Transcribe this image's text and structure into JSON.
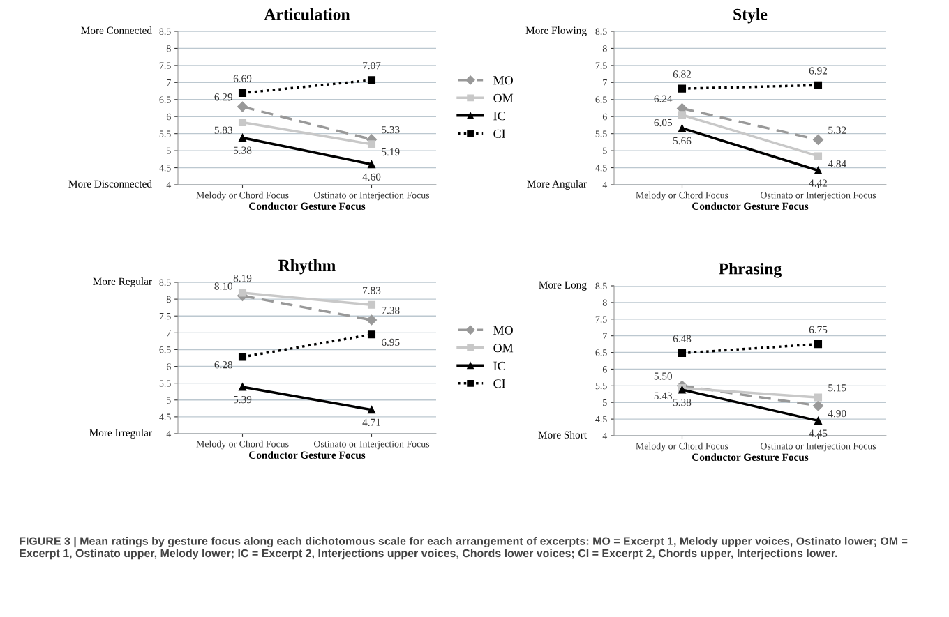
{
  "chart_data": [
    {
      "type": "line",
      "title": "Articulation",
      "xlabel": "Conductor Gesture Focus",
      "categories": [
        "Melody or Chord Focus",
        "Ostinato or Interjection Focus"
      ],
      "series": [
        {
          "name": "MO",
          "color": "#999999",
          "values": [
            6.29,
            5.33
          ],
          "marker": "diamond",
          "line_style": "dashed"
        },
        {
          "name": "OM",
          "color": "#c8c8c8",
          "values": [
            5.83,
            5.19
          ],
          "marker": "square",
          "line_style": "solid"
        },
        {
          "name": "IC",
          "color": "#000000",
          "values": [
            5.38,
            4.6
          ],
          "value_labels": [
            "5.38",
            "4.60"
          ],
          "marker": "triangle",
          "line_style": "solid"
        },
        {
          "name": "CI",
          "color": "#000000",
          "values": [
            6.69,
            7.07
          ],
          "marker": "square",
          "line_style": "dotted"
        }
      ],
      "ylim": [
        4,
        8.5
      ],
      "yticks": [
        4,
        4.5,
        5,
        5.5,
        6,
        6.5,
        7,
        7.5,
        8,
        8.5
      ],
      "grid": "y",
      "legend": "right",
      "data_labels": true,
      "annotations": [
        "More Connected",
        "More Disconnected",
        "FIGURE 3 | Mean ratings by gesture focus along each dichotomous scale for each arrangement of excerpts: MO = Excerpt 1, Melody upper voices, Ostinato lower; OM = Excerpt 1, Ostinato upper, Melody lower; IC = Excerpt 2, Interjections upper voices, Chords lower voices; CI = Excerpt 2, Chords upper, Interjections lower."
      ]
    },
    {
      "type": "line",
      "title": "Style",
      "xlabel": "Conductor Gesture Focus",
      "categories": [
        "Melody or Chord Focus",
        "Ostinato or Interjection Focus"
      ],
      "series": [
        {
          "color": "#999999",
          "values": [
            6.24,
            5.32
          ],
          "marker": "diamond",
          "line_style": "dashed"
        },
        {
          "color": "#c8c8c8",
          "values": [
            6.05,
            4.84
          ],
          "marker": "square",
          "line_style": "solid"
        },
        {
          "color": "#000000",
          "values": [
            5.66,
            4.42
          ],
          "marker": "triangle",
          "line_style": "solid"
        },
        {
          "color": "#000000",
          "values": [
            6.82,
            6.92
          ],
          "marker": "square",
          "line_style": "dotted"
        }
      ],
      "ylim": [
        4,
        8.5
      ],
      "yticks": [
        4,
        4.5,
        5,
        5.5,
        6,
        6.5,
        7,
        7.5,
        8,
        8.5
      ],
      "grid": "y",
      "data_labels": true,
      "annotations": [
        "More Flowing",
        "More Angular"
      ]
    },
    {
      "type": "line",
      "title": "Rhythm",
      "xlabel": "Conductor Gesture Focus",
      "categories": [
        "Melody or Chord Focus",
        "Ostinato or Interjection Focus"
      ],
      "series": [
        {
          "name": "MO",
          "color": "#999999",
          "values": [
            8.1,
            7.38
          ],
          "value_labels": [
            "8.10",
            "7.38"
          ],
          "marker": "diamond",
          "line_style": "dashed"
        },
        {
          "name": "OM",
          "color": "#c8c8c8",
          "values": [
            8.19,
            7.83
          ],
          "marker": "square",
          "line_style": "solid"
        },
        {
          "name": "IC",
          "color": "#000000",
          "values": [
            5.39,
            4.71
          ],
          "marker": "triangle",
          "line_style": "solid"
        },
        {
          "name": "CI",
          "color": "#000000",
          "values": [
            6.28,
            6.95
          ],
          "marker": "square",
          "line_style": "dotted"
        }
      ],
      "ylim": [
        4,
        8.5
      ],
      "yticks": [
        4,
        4.5,
        5,
        5.5,
        6,
        6.5,
        7,
        7.5,
        8,
        8.5
      ],
      "grid": "y",
      "legend": "right",
      "data_labels": true,
      "annotations": [
        "More Regular",
        "More Irregular"
      ]
    },
    {
      "type": "line",
      "title": "Phrasing",
      "xlabel": "Conductor Gesture Focus",
      "categories": [
        "Melody or Chord Focus",
        "Ostinato or Interjection Focus"
      ],
      "series": [
        {
          "color": "#999999",
          "values": [
            5.5,
            4.9
          ],
          "value_labels": [
            "5.50",
            "4.90"
          ],
          "marker": "diamond",
          "line_style": "dashed"
        },
        {
          "color": "#c8c8c8",
          "values": [
            5.43,
            5.15
          ],
          "marker": "square",
          "line_style": "solid"
        },
        {
          "color": "#000000",
          "values": [
            5.38,
            4.45
          ],
          "marker": "triangle",
          "line_style": "solid"
        },
        {
          "color": "#000000",
          "values": [
            6.48,
            6.75
          ],
          "marker": "square",
          "line_style": "dotted"
        }
      ],
      "ylim": [
        4,
        8.5
      ],
      "yticks": [
        4,
        4.5,
        5,
        5.5,
        6,
        6.5,
        7,
        7.5,
        8,
        8.5
      ],
      "grid": "y",
      "data_labels": true,
      "annotations": [
        "More Long",
        "More Short"
      ]
    }
  ]
}
